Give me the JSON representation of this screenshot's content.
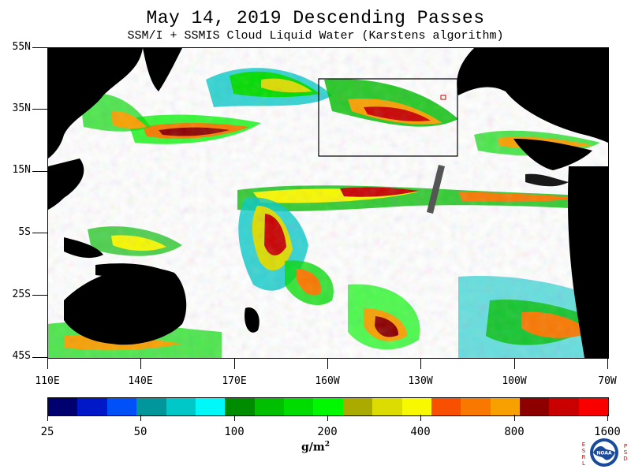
{
  "header": {
    "title": "May 14, 2019  Descending Passes",
    "subtitle": "SSM/I + SSMIS Cloud Liquid Water (Karstens algorithm)"
  },
  "map": {
    "lat_labels": [
      "55N",
      "35N",
      "15N",
      "5S",
      "25S",
      "45S"
    ],
    "lon_labels": [
      "110E",
      "140E",
      "170E",
      "160W",
      "130W",
      "100W",
      "70W"
    ],
    "highlight_box": "black rectangle over northeast Pacific (~160W–125W, ~20N–45N)"
  },
  "colorbar": {
    "colors": [
      "#00006e",
      "#0018c8",
      "#0050f8",
      "#00969a",
      "#00c8c8",
      "#00f8f8",
      "#008c00",
      "#00be00",
      "#00dc00",
      "#00f800",
      "#aaaa00",
      "#dcdc00",
      "#f8f800",
      "#f85000",
      "#f87800",
      "#f8a000",
      "#8c0000",
      "#c80000",
      "#f80000"
    ],
    "labels": [
      "25",
      "50",
      "100",
      "200",
      "400",
      "800",
      "1600"
    ],
    "unit_base": "g/m",
    "unit_exp": "2"
  },
  "logo": {
    "center_text": "NOAA",
    "left_letters": "ESRL",
    "right_letters": "PSD"
  }
}
